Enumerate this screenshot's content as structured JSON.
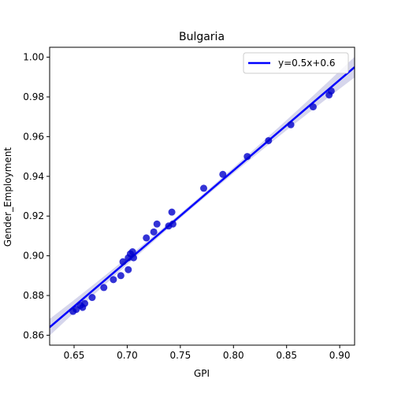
{
  "chart_data": {
    "type": "scatter",
    "title": "Bulgaria",
    "xlabel": "GPI",
    "ylabel": "Gender_Employment",
    "xlim": [
      0.627,
      0.914
    ],
    "ylim": [
      0.855,
      1.005
    ],
    "xticks": [
      0.65,
      0.7,
      0.75,
      0.8,
      0.85,
      0.9
    ],
    "xtick_labels": [
      "0.65",
      "0.70",
      "0.75",
      "0.80",
      "0.85",
      "0.90"
    ],
    "yticks": [
      0.86,
      0.88,
      0.9,
      0.92,
      0.94,
      0.96,
      0.98,
      1.0
    ],
    "ytick_labels": [
      "0.86",
      "0.88",
      "0.90",
      "0.92",
      "0.94",
      "0.96",
      "0.98",
      "1.00"
    ],
    "grid": false,
    "legend_position": "top-right",
    "series": [
      {
        "kind": "scatter",
        "color": "#0000cc",
        "points": [
          [
            0.649,
            0.872
          ],
          [
            0.652,
            0.873
          ],
          [
            0.656,
            0.875
          ],
          [
            0.658,
            0.874
          ],
          [
            0.66,
            0.876
          ],
          [
            0.667,
            0.879
          ],
          [
            0.678,
            0.884
          ],
          [
            0.687,
            0.888
          ],
          [
            0.694,
            0.89
          ],
          [
            0.696,
            0.897
          ],
          [
            0.701,
            0.893
          ],
          [
            0.701,
            0.899
          ],
          [
            0.703,
            0.901
          ],
          [
            0.705,
            0.902
          ],
          [
            0.706,
            0.899
          ],
          [
            0.718,
            0.909
          ],
          [
            0.725,
            0.912
          ],
          [
            0.728,
            0.916
          ],
          [
            0.739,
            0.915
          ],
          [
            0.742,
            0.922
          ],
          [
            0.743,
            0.916
          ],
          [
            0.772,
            0.934
          ],
          [
            0.79,
            0.941
          ],
          [
            0.813,
            0.95
          ],
          [
            0.833,
            0.958
          ],
          [
            0.854,
            0.966
          ],
          [
            0.875,
            0.975
          ],
          [
            0.89,
            0.981
          ],
          [
            0.892,
            0.983
          ]
        ]
      },
      {
        "kind": "regression",
        "name": "y=0.5x+0.6",
        "color": "#0000ff",
        "x": [
          0.627,
          0.914
        ],
        "y": [
          0.864,
          0.995
        ],
        "ci_color": "#c8c8e6"
      }
    ]
  }
}
